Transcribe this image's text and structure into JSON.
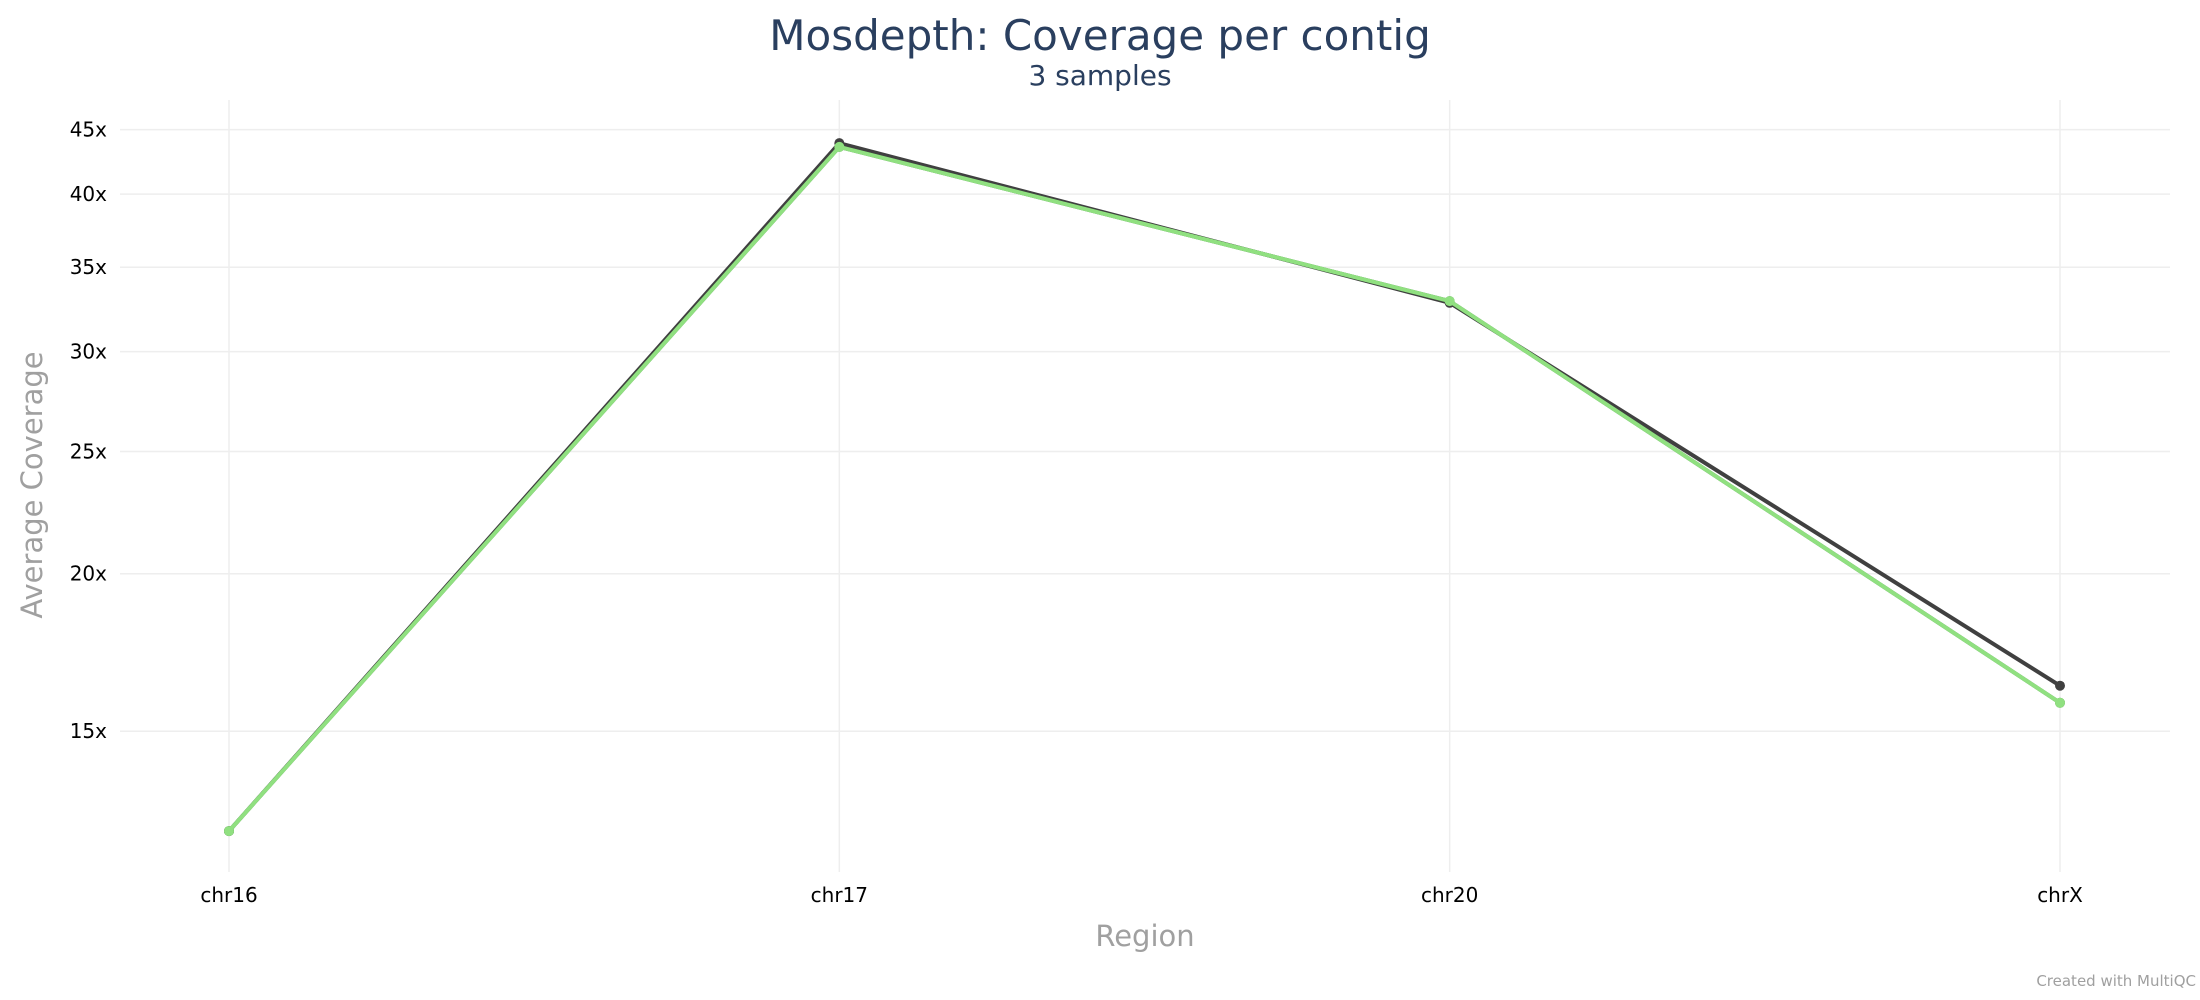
{
  "chart_data": {
    "type": "line",
    "title": "Mosdepth: Coverage per contig",
    "subtitle": "3 samples",
    "xlabel": "Region",
    "ylabel": "Average Coverage",
    "categories": [
      "chr16",
      "chr17",
      "chr20",
      "chrX"
    ],
    "y_scale": "log",
    "ylim": [
      11.6,
      47.5
    ],
    "y_ticks": [
      15,
      20,
      25,
      30,
      35,
      40,
      45
    ],
    "y_tick_labels": [
      "15x",
      "20x",
      "25x",
      "30x",
      "35x",
      "40x",
      "45x"
    ],
    "grid": true,
    "series": [
      {
        "color": "#404040",
        "values": [
          12.5,
          43.9,
          32.8,
          16.3
        ]
      },
      {
        "color": "#3b7a3b",
        "values": [
          12.5,
          43.6,
          32.9,
          15.8
        ]
      },
      {
        "color": "#90e080",
        "values": [
          12.5,
          43.6,
          32.9,
          15.8
        ]
      }
    ]
  },
  "footer": {
    "credit": "Created with MultiQC"
  }
}
